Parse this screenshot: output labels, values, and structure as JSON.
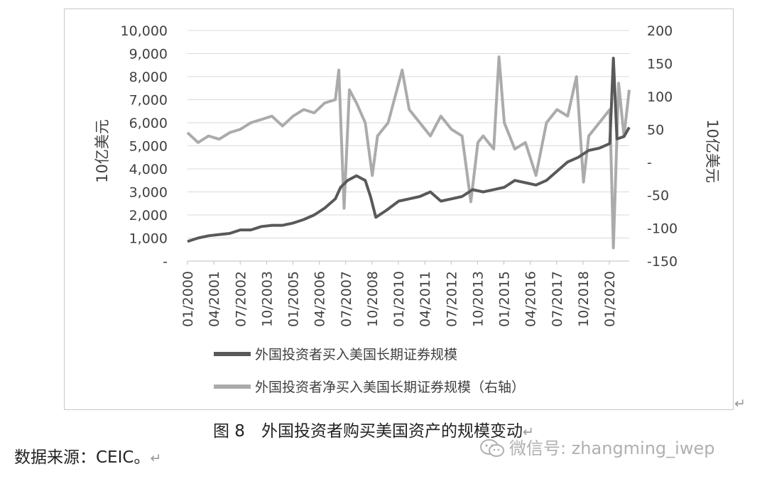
{
  "chart_data": {
    "type": "line",
    "left_axis": {
      "title": "10亿美元",
      "ticks": [
        "-",
        "1,000",
        "2,000",
        "3,000",
        "4,000",
        "5,000",
        "6,000",
        "7,000",
        "8,000",
        "9,000",
        "10,000"
      ],
      "ylim": [
        0,
        10000
      ]
    },
    "right_axis": {
      "title": "10亿美元",
      "ticks": [
        "-150",
        "-100",
        "-50",
        "-",
        "50",
        "100",
        "150",
        "200"
      ],
      "ylim": [
        -150,
        200
      ]
    },
    "x_tick_labels": [
      "01/2000",
      "04/2001",
      "07/2002",
      "10/2003",
      "01/2005",
      "04/2006",
      "07/2007",
      "10/2008",
      "01/2010",
      "04/2011",
      "07/2012",
      "10/2013",
      "01/2015",
      "04/2016",
      "07/2017",
      "10/2018",
      "01/2020"
    ],
    "x_range": [
      "2000-01",
      "2020-12"
    ],
    "grid": true,
    "legend_position": "bottom",
    "series": [
      {
        "name": "外国投资者买入美国长期证券规模",
        "axis": "left",
        "color": "#595959",
        "points": [
          [
            "2000-01",
            850
          ],
          [
            "2000-07",
            1000
          ],
          [
            "2001-01",
            1100
          ],
          [
            "2001-07",
            1150
          ],
          [
            "2002-01",
            1200
          ],
          [
            "2002-07",
            1350
          ],
          [
            "2003-01",
            1350
          ],
          [
            "2003-07",
            1500
          ],
          [
            "2004-01",
            1550
          ],
          [
            "2004-07",
            1550
          ],
          [
            "2005-01",
            1650
          ],
          [
            "2005-07",
            1800
          ],
          [
            "2006-01",
            2000
          ],
          [
            "2006-07",
            2300
          ],
          [
            "2007-01",
            2700
          ],
          [
            "2007-04",
            3200
          ],
          [
            "2007-08",
            3500
          ],
          [
            "2008-01",
            3700
          ],
          [
            "2008-06",
            3500
          ],
          [
            "2008-09",
            2800
          ],
          [
            "2008-12",
            1900
          ],
          [
            "2009-06",
            2200
          ],
          [
            "2010-01",
            2600
          ],
          [
            "2010-07",
            2700
          ],
          [
            "2011-01",
            2800
          ],
          [
            "2011-07",
            3000
          ],
          [
            "2012-01",
            2600
          ],
          [
            "2012-07",
            2700
          ],
          [
            "2013-01",
            2800
          ],
          [
            "2013-07",
            3100
          ],
          [
            "2014-01",
            3000
          ],
          [
            "2014-07",
            3100
          ],
          [
            "2015-01",
            3200
          ],
          [
            "2015-07",
            3500
          ],
          [
            "2016-01",
            3400
          ],
          [
            "2016-07",
            3300
          ],
          [
            "2017-01",
            3500
          ],
          [
            "2017-07",
            3900
          ],
          [
            "2018-01",
            4300
          ],
          [
            "2018-07",
            4500
          ],
          [
            "2019-01",
            4800
          ],
          [
            "2019-07",
            4900
          ],
          [
            "2020-01",
            5100
          ],
          [
            "2020-03",
            8800
          ],
          [
            "2020-05",
            5300
          ],
          [
            "2020-09",
            5400
          ],
          [
            "2020-12",
            5800
          ]
        ]
      },
      {
        "name": "外国投资者净买入美国长期证券规模（右轴）",
        "axis": "right",
        "color": "#ababab",
        "points": [
          [
            "2000-01",
            45
          ],
          [
            "2000-07",
            30
          ],
          [
            "2001-01",
            40
          ],
          [
            "2001-07",
            35
          ],
          [
            "2002-01",
            45
          ],
          [
            "2002-07",
            50
          ],
          [
            "2003-01",
            60
          ],
          [
            "2003-07",
            65
          ],
          [
            "2004-01",
            70
          ],
          [
            "2004-07",
            55
          ],
          [
            "2005-01",
            70
          ],
          [
            "2005-07",
            80
          ],
          [
            "2006-01",
            75
          ],
          [
            "2006-07",
            90
          ],
          [
            "2007-01",
            95
          ],
          [
            "2007-03",
            140
          ],
          [
            "2007-06",
            -70
          ],
          [
            "2007-09",
            110
          ],
          [
            "2008-01",
            90
          ],
          [
            "2008-06",
            60
          ],
          [
            "2008-10",
            -20
          ],
          [
            "2009-01",
            40
          ],
          [
            "2009-07",
            60
          ],
          [
            "2010-01",
            120
          ],
          [
            "2010-03",
            140
          ],
          [
            "2010-07",
            80
          ],
          [
            "2011-01",
            60
          ],
          [
            "2011-07",
            40
          ],
          [
            "2012-01",
            70
          ],
          [
            "2012-07",
            50
          ],
          [
            "2013-01",
            40
          ],
          [
            "2013-06",
            -60
          ],
          [
            "2013-10",
            30
          ],
          [
            "2014-01",
            40
          ],
          [
            "2014-07",
            20
          ],
          [
            "2014-10",
            160
          ],
          [
            "2015-01",
            60
          ],
          [
            "2015-07",
            20
          ],
          [
            "2016-01",
            30
          ],
          [
            "2016-07",
            -20
          ],
          [
            "2017-01",
            60
          ],
          [
            "2017-07",
            80
          ],
          [
            "2018-01",
            70
          ],
          [
            "2018-06",
            130
          ],
          [
            "2018-10",
            -30
          ],
          [
            "2019-01",
            40
          ],
          [
            "2019-07",
            60
          ],
          [
            "2020-01",
            80
          ],
          [
            "2020-03",
            -130
          ],
          [
            "2020-06",
            120
          ],
          [
            "2020-09",
            40
          ],
          [
            "2020-12",
            110
          ]
        ]
      }
    ]
  },
  "caption": "图 8　外国投资者购买美国资产的规模变动",
  "source": "数据来源：CEIC。",
  "watermark": "微信号: zhangming_iwep",
  "marks": {
    "return": "↵"
  }
}
